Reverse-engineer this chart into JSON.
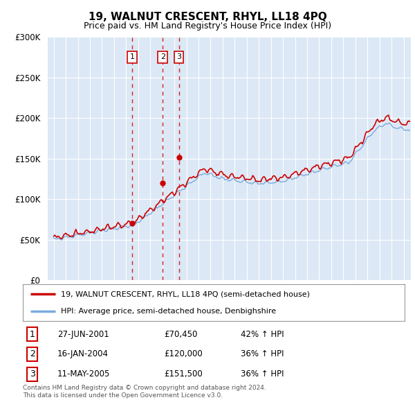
{
  "title": "19, WALNUT CRESCENT, RHYL, LL18 4PQ",
  "subtitle": "Price paid vs. HM Land Registry's House Price Index (HPI)",
  "legend_line1": "19, WALNUT CRESCENT, RHYL, LL18 4PQ (semi-detached house)",
  "legend_line2": "HPI: Average price, semi-detached house, Denbighshire",
  "footer1": "Contains HM Land Registry data © Crown copyright and database right 2024.",
  "footer2": "This data is licensed under the Open Government Licence v3.0.",
  "sales": [
    {
      "num": 1,
      "date": "27-JUN-2001",
      "price": "£70,450",
      "hpi": "42% ↑ HPI",
      "year": 2001.49
    },
    {
      "num": 2,
      "date": "16-JAN-2004",
      "price": "£120,000",
      "hpi": "36% ↑ HPI",
      "year": 2004.04
    },
    {
      "num": 3,
      "date": "11-MAY-2005",
      "price": "£151,500",
      "hpi": "36% ↑ HPI",
      "year": 2005.37
    }
  ],
  "sale_prices": [
    70450,
    120000,
    151500
  ],
  "sale_years": [
    2001.49,
    2004.04,
    2005.37
  ],
  "red_color": "#cc0000",
  "blue_color": "#7aaadd",
  "dashed_color": "#cc0000",
  "ylim": [
    0,
    300000
  ],
  "xlim_start": 1994.5,
  "xlim_end": 2024.6,
  "chart_bg": "#dce8f5",
  "background_color": "#ffffff",
  "grid_color": "#ffffff"
}
